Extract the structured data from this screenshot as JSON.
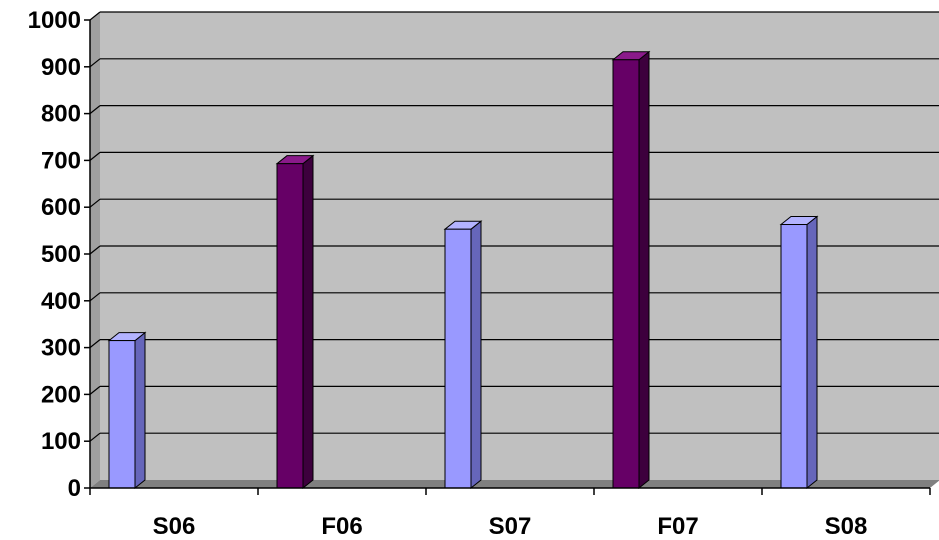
{
  "chart_data": {
    "type": "bar",
    "categories": [
      "S06",
      "F06",
      "S07",
      "F07",
      "S08"
    ],
    "values": [
      315,
      693,
      553,
      915,
      563
    ],
    "ylim": [
      0,
      1000
    ],
    "yticks": [
      "0",
      "100",
      "200",
      "300",
      "400",
      "500",
      "600",
      "700",
      "800",
      "900",
      "1000"
    ],
    "grid": true,
    "legend": "none",
    "colors": {
      "plot_bg": "#c0c0c0",
      "floor": "#808080",
      "spring": "#9999ff",
      "spring_side": "#6666bb",
      "spring_top": "#b3b3ff",
      "fall": "#660066",
      "fall_side": "#3d003d",
      "fall_top": "#8a1a8a",
      "gridline": "#000000"
    }
  }
}
